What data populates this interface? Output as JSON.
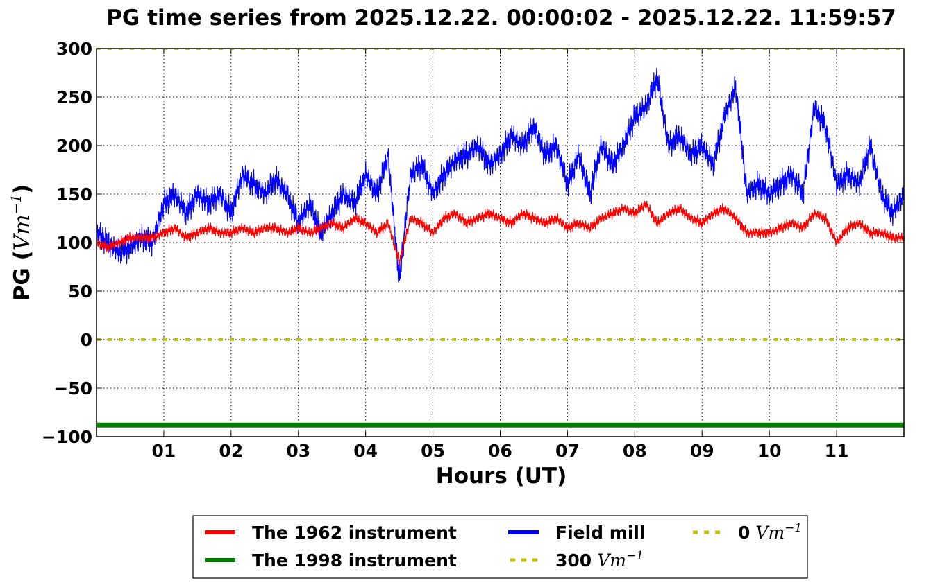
{
  "chart_data": {
    "type": "line",
    "title": "PG time series from 2025.12.22. 00:00:02 - 2025.12.22. 11:59:57",
    "xlabel": "Hours (UT)",
    "ylabel": "PG (",
    "ylabel_unit": "Vm",
    "ylabel_exp": "−1",
    "ylabel_close": ")",
    "xlim": [
      0,
      12
    ],
    "ylim": [
      -100,
      300
    ],
    "grid": true,
    "x_ticks": [
      1,
      2,
      3,
      4,
      5,
      6,
      7,
      8,
      9,
      10,
      11
    ],
    "x_tick_labels": [
      "01",
      "02",
      "03",
      "04",
      "05",
      "06",
      "07",
      "08",
      "09",
      "10",
      "11"
    ],
    "y_ticks": [
      -100,
      -50,
      0,
      50,
      100,
      150,
      200,
      250,
      300
    ],
    "y_tick_labels": [
      "−100",
      "−50",
      "0",
      "50",
      "100",
      "150",
      "200",
      "250",
      "300"
    ],
    "x_step_hours": 0.16667,
    "series": [
      {
        "name": "The 1962 instrument",
        "color": "#ff0000",
        "style": "solid",
        "values": [
          100,
          95,
          100,
          105,
          105,
          105,
          110,
          115,
          105,
          110,
          115,
          110,
          110,
          115,
          110,
          115,
          115,
          110,
          115,
          110,
          115,
          120,
          115,
          125,
          120,
          110,
          120,
          80,
          125,
          120,
          110,
          125,
          130,
          120,
          125,
          130,
          125,
          120,
          130,
          125,
          120,
          125,
          115,
          120,
          115,
          125,
          130,
          135,
          130,
          140,
          120,
          130,
          135,
          125,
          120,
          130,
          135,
          125,
          110,
          110,
          110,
          115,
          120,
          115,
          130,
          125,
          100,
          115,
          120,
          110,
          110,
          105,
          105
        ]
      },
      {
        "name": "The 1998 instrument",
        "color": "#008000",
        "style": "solid",
        "constant": -88
      },
      {
        "name": "Field mill",
        "color": "#0000ff",
        "style": "solid",
        "values": [
          110,
          100,
          90,
          95,
          105,
          100,
          140,
          150,
          130,
          150,
          140,
          150,
          130,
          170,
          160,
          150,
          165,
          150,
          120,
          140,
          110,
          130,
          150,
          140,
          170,
          150,
          190,
          60,
          170,
          180,
          150,
          170,
          185,
          190,
          200,
          180,
          190,
          210,
          200,
          220,
          190,
          200,
          160,
          190,
          150,
          200,
          180,
          200,
          230,
          240,
          270,
          200,
          210,
          190,
          200,
          180,
          230,
          260,
          150,
          160,
          150,
          160,
          170,
          150,
          240,
          220,
          160,
          170,
          160,
          200,
          150,
          130,
          150
        ]
      },
      {
        "name": "300",
        "unit": "Vm",
        "exp": "−1",
        "color": "#bfbf00",
        "style": "dotted",
        "constant": 300
      },
      {
        "name": "0",
        "unit": "Vm",
        "exp": "−1",
        "color": "#bfbf00",
        "style": "dotted",
        "constant": 0
      }
    ],
    "legend_position": "bottom-center"
  }
}
